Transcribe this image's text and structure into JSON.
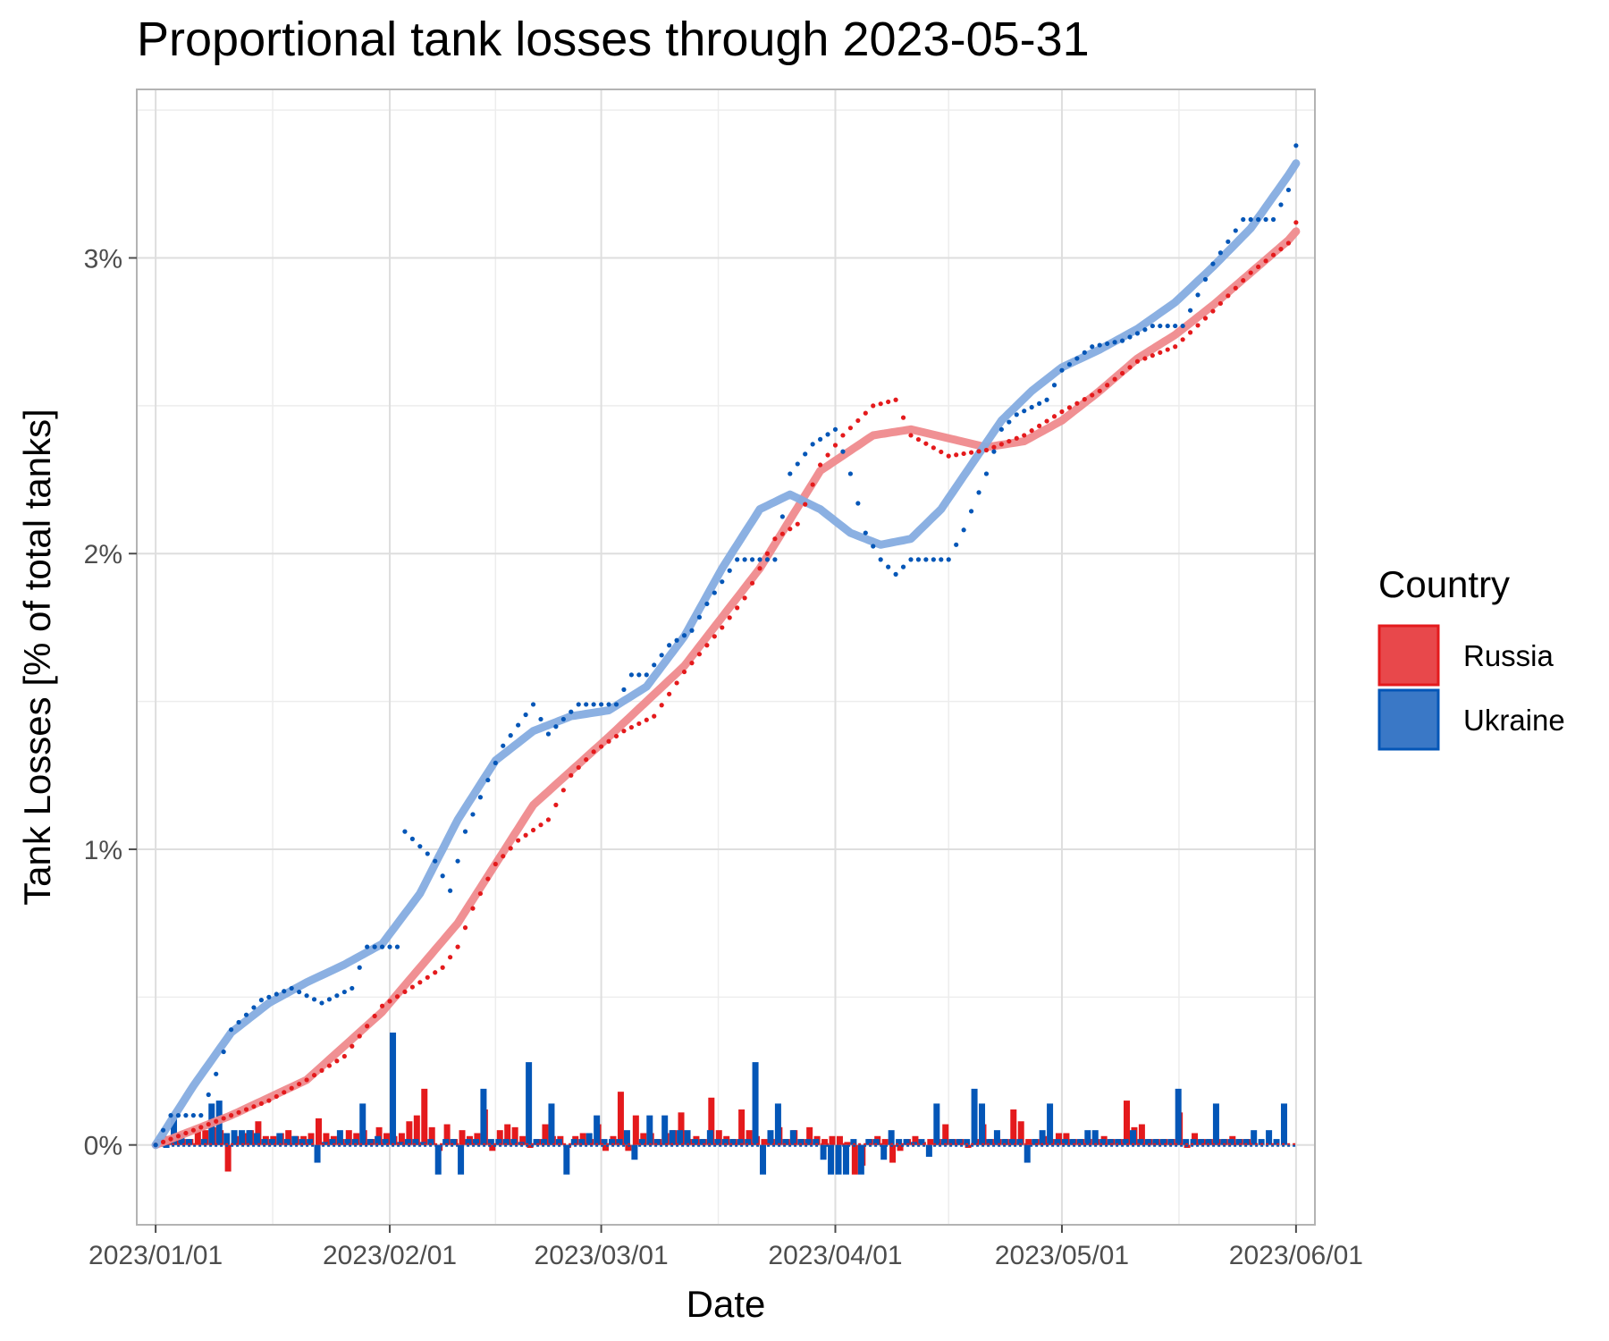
{
  "chart_data": {
    "type": "line",
    "title": "Proportional tank losses through 2023-05-31",
    "xlabel": "Date",
    "ylabel": "Tank Losses [% of total tanks]",
    "x_start": "2023-01-01",
    "x_end": "2023-05-31",
    "xlim_days": [
      -2.5,
      153.5
    ],
    "ylim": [
      -0.27,
      3.57
    ],
    "x_ticks": [
      {
        "day": 0,
        "label": "2023/01/01"
      },
      {
        "day": 31,
        "label": "2023/02/01"
      },
      {
        "day": 59,
        "label": "2023/03/01"
      },
      {
        "day": 90,
        "label": "2023/04/01"
      },
      {
        "day": 120,
        "label": "2023/05/01"
      },
      {
        "day": 151,
        "label": "2023/06/01"
      }
    ],
    "y_ticks": [
      {
        "value": 0,
        "label": "0%"
      },
      {
        "value": 1,
        "label": "1%"
      },
      {
        "value": 2,
        "label": "2%"
      },
      {
        "value": 3,
        "label": "3%"
      }
    ],
    "legend": {
      "title": "Country",
      "position": "right",
      "entries": [
        {
          "name": "Russia",
          "color": "#e41a1c",
          "fill": "#e8484b"
        },
        {
          "name": "Ukraine",
          "color": "#0456b7",
          "fill": "#3a78c6"
        }
      ]
    },
    "series": [
      {
        "name": "Russia",
        "color": "#e41a1c",
        "smooth_color": "#ef8a8d",
        "cumulative_anchors": [
          [
            0,
            0
          ],
          [
            5,
            0.05
          ],
          [
            10,
            0.1
          ],
          [
            15,
            0.15
          ],
          [
            20,
            0.22
          ],
          [
            25,
            0.3
          ],
          [
            30,
            0.47
          ],
          [
            35,
            0.55
          ],
          [
            38,
            0.6
          ],
          [
            40,
            0.67
          ],
          [
            42,
            0.8
          ],
          [
            45,
            0.95
          ],
          [
            48,
            1.03
          ],
          [
            52,
            1.1
          ],
          [
            55,
            1.25
          ],
          [
            58,
            1.33
          ],
          [
            62,
            1.4
          ],
          [
            66,
            1.45
          ],
          [
            70,
            1.6
          ],
          [
            75,
            1.75
          ],
          [
            78,
            1.85
          ],
          [
            82,
            2.05
          ],
          [
            85,
            2.1
          ],
          [
            88,
            2.3
          ],
          [
            91,
            2.4
          ],
          [
            95,
            2.5
          ],
          [
            98,
            2.52
          ],
          [
            100,
            2.4
          ],
          [
            105,
            2.33
          ],
          [
            110,
            2.35
          ],
          [
            115,
            2.4
          ],
          [
            120,
            2.48
          ],
          [
            125,
            2.55
          ],
          [
            130,
            2.65
          ],
          [
            135,
            2.7
          ],
          [
            140,
            2.82
          ],
          [
            145,
            2.95
          ],
          [
            150,
            3.05
          ],
          [
            151,
            3.12
          ]
        ],
        "smooth_anchors": [
          [
            0,
            0
          ],
          [
            10,
            0.1
          ],
          [
            20,
            0.22
          ],
          [
            30,
            0.45
          ],
          [
            40,
            0.75
          ],
          [
            50,
            1.15
          ],
          [
            60,
            1.38
          ],
          [
            70,
            1.62
          ],
          [
            80,
            1.95
          ],
          [
            88,
            2.28
          ],
          [
            95,
            2.4
          ],
          [
            100,
            2.42
          ],
          [
            105,
            2.39
          ],
          [
            110,
            2.36
          ],
          [
            115,
            2.38
          ],
          [
            120,
            2.45
          ],
          [
            125,
            2.55
          ],
          [
            130,
            2.66
          ],
          [
            135,
            2.74
          ],
          [
            140,
            2.84
          ],
          [
            145,
            2.95
          ],
          [
            150,
            3.06
          ],
          [
            151,
            3.09
          ]
        ],
        "daily_changes": [
          0,
          0.02,
          0.03,
          0.04,
          0.02,
          0.02,
          0.05,
          0.05,
          0.06,
          0.05,
          -0.09,
          0.03,
          0.04,
          0.05,
          0.08,
          0.03,
          0.03,
          0.04,
          0.05,
          0.03,
          0.03,
          0.04,
          0.09,
          0.04,
          0.03,
          0.02,
          0.05,
          0.04,
          0.05,
          0.02,
          0.06,
          0.04,
          0.03,
          0.04,
          0.08,
          0.1,
          0.19,
          0.06,
          -0.02,
          0.07,
          0.02,
          0.05,
          0.03,
          0.04,
          0.12,
          -0.02,
          0.05,
          0.07,
          0.06,
          0.03,
          -0.01,
          0.02,
          0.07,
          0.03,
          0.03,
          -0.01,
          0.03,
          0.04,
          0.02,
          0.07,
          -0.02,
          0.03,
          0.18,
          -0.02,
          0.1,
          0.04,
          0.04,
          0.02,
          0.04,
          0.05,
          0.11,
          0.02,
          0.03,
          0.02,
          0.16,
          0.05,
          0.03,
          0.02,
          0.12,
          0.05,
          0.03,
          0.02,
          0.02,
          0.06,
          0.02,
          0.05,
          0.02,
          0.06,
          0.03,
          0.02,
          0.03,
          0.03,
          0.01,
          -0.1,
          -0.07,
          0.02,
          0.03,
          0.02,
          -0.06,
          -0.02,
          0.02,
          0.03,
          0.01,
          0.02,
          0.02,
          0.07,
          0.02,
          0.02,
          -0.01,
          0.02,
          0.07,
          0.02,
          0.02,
          0.02,
          0.12,
          0.08,
          0.02,
          0.02,
          0.03,
          0.02,
          0.04,
          0.04,
          0.02,
          0.02,
          0.02,
          0.02,
          0.03,
          0.02,
          0.02,
          0.15,
          0.06,
          0.07,
          0.02,
          0.02,
          0.02,
          0.02,
          0.11,
          -0.01,
          0.04,
          0.02,
          0.02,
          0.02,
          0.02,
          0.03,
          0.02,
          0.02
        ]
      },
      {
        "name": "Ukraine",
        "color": "#0456b7",
        "smooth_color": "#85ace0",
        "cumulative_anchors": [
          [
            0,
            0
          ],
          [
            2,
            0.1
          ],
          [
            6,
            0.1
          ],
          [
            8,
            0.24
          ],
          [
            10,
            0.39
          ],
          [
            12,
            0.44
          ],
          [
            14,
            0.49
          ],
          [
            18,
            0.53
          ],
          [
            22,
            0.48
          ],
          [
            26,
            0.53
          ],
          [
            28,
            0.67
          ],
          [
            32,
            0.67
          ],
          [
            33,
            1.06
          ],
          [
            37,
            0.96
          ],
          [
            39,
            0.86
          ],
          [
            41,
            1.06
          ],
          [
            46,
            1.35
          ],
          [
            50,
            1.49
          ],
          [
            52,
            1.39
          ],
          [
            56,
            1.49
          ],
          [
            61,
            1.49
          ],
          [
            63,
            1.59
          ],
          [
            65,
            1.59
          ],
          [
            68,
            1.69
          ],
          [
            71,
            1.74
          ],
          [
            73,
            1.83
          ],
          [
            77,
            1.98
          ],
          [
            82,
            1.98
          ],
          [
            84,
            2.27
          ],
          [
            87,
            2.37
          ],
          [
            90,
            2.42
          ],
          [
            92,
            2.27
          ],
          [
            94,
            2.07
          ],
          [
            96,
            1.98
          ],
          [
            98,
            1.93
          ],
          [
            100,
            1.98
          ],
          [
            105,
            1.98
          ],
          [
            107,
            2.08
          ],
          [
            110,
            2.27
          ],
          [
            112,
            2.42
          ],
          [
            114,
            2.47
          ],
          [
            118,
            2.52
          ],
          [
            120,
            2.62
          ],
          [
            124,
            2.7
          ],
          [
            128,
            2.72
          ],
          [
            132,
            2.77
          ],
          [
            136,
            2.77
          ],
          [
            140,
            2.98
          ],
          [
            144,
            3.13
          ],
          [
            148,
            3.13
          ],
          [
            149,
            3.18
          ],
          [
            150,
            3.23
          ],
          [
            151,
            3.38
          ]
        ],
        "smooth_anchors": [
          [
            0,
            0
          ],
          [
            5,
            0.2
          ],
          [
            10,
            0.38
          ],
          [
            15,
            0.48
          ],
          [
            20,
            0.55
          ],
          [
            25,
            0.61
          ],
          [
            30,
            0.68
          ],
          [
            35,
            0.85
          ],
          [
            40,
            1.1
          ],
          [
            45,
            1.3
          ],
          [
            50,
            1.4
          ],
          [
            55,
            1.45
          ],
          [
            60,
            1.47
          ],
          [
            65,
            1.55
          ],
          [
            70,
            1.72
          ],
          [
            75,
            1.95
          ],
          [
            80,
            2.15
          ],
          [
            84,
            2.2
          ],
          [
            88,
            2.15
          ],
          [
            92,
            2.07
          ],
          [
            96,
            2.03
          ],
          [
            100,
            2.05
          ],
          [
            104,
            2.15
          ],
          [
            108,
            2.3
          ],
          [
            112,
            2.45
          ],
          [
            116,
            2.55
          ],
          [
            120,
            2.63
          ],
          [
            125,
            2.69
          ],
          [
            130,
            2.76
          ],
          [
            135,
            2.85
          ],
          [
            140,
            2.97
          ],
          [
            145,
            3.1
          ],
          [
            150,
            3.28
          ],
          [
            151,
            3.32
          ]
        ],
        "daily_changes": [
          0,
          -0.01,
          0.1,
          0.04,
          0.02,
          0,
          0.02,
          0.14,
          0.15,
          0.04,
          0.05,
          0.05,
          0.05,
          0.04,
          0.02,
          0.02,
          0.04,
          0.02,
          0.03,
          0.02,
          0.02,
          -0.06,
          0.01,
          0.02,
          0.05,
          0.02,
          0.02,
          0.14,
          0.02,
          0.03,
          0.02,
          0.38,
          0.01,
          0.02,
          0.02,
          0.01,
          0.02,
          -0.1,
          0.02,
          0.02,
          -0.1,
          0.02,
          0.02,
          0.19,
          0.02,
          0.02,
          0.02,
          0.02,
          0.01,
          0.28,
          0.02,
          0.02,
          0.14,
          0.02,
          -0.1,
          0.02,
          0.02,
          0.04,
          0.1,
          0.02,
          0.02,
          0.02,
          0.05,
          -0.05,
          0.02,
          0.1,
          0.02,
          0.1,
          0.05,
          0.05,
          0.05,
          0.02,
          0.02,
          0.05,
          0.02,
          0.02,
          0.02,
          0.02,
          0.02,
          0.28,
          -0.1,
          0.05,
          0.14,
          0.02,
          0.05,
          0.02,
          0.02,
          0.02,
          -0.05,
          -0.1,
          -0.1,
          -0.1,
          0.02,
          -0.1,
          0.02,
          0.02,
          -0.05,
          0.05,
          0.02,
          0.02,
          0.01,
          0.02,
          -0.04,
          0.14,
          0.02,
          0.02,
          0.02,
          0.02,
          0.19,
          0.14,
          0.02,
          0.05,
          0.02,
          0.02,
          0.02,
          -0.06,
          0.02,
          0.05,
          0.14,
          0.02,
          0.02,
          0.02,
          0.02,
          0.05,
          0.05,
          0.02,
          0.02,
          0.02,
          0.02,
          0.05,
          0.02,
          0.02,
          0.02,
          0.02,
          0.02,
          0.19,
          0.02,
          0.02,
          0.02,
          0.02,
          0.14,
          0.02,
          0.02,
          0.02,
          0.02,
          0.05,
          0.02,
          0.05,
          0.02,
          0.14
        ]
      }
    ]
  }
}
